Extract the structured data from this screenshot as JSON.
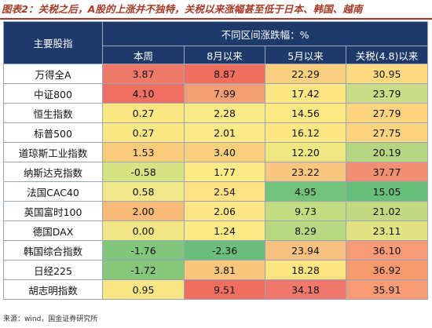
{
  "title": "图表2：关税之后，A股的上涨并不独特，关税以来涨幅甚至低于日本、韩国、越南",
  "header": {
    "row_label": "主要股指",
    "group_label": "不同区间涨跌幅：%",
    "columns": [
      "本周",
      "8月以来",
      "5月以来",
      "关税(4.8)以来"
    ]
  },
  "rows": [
    {
      "name": "万得全A",
      "values": [
        "3.87",
        "8.87",
        "22.29",
        "30.95"
      ]
    },
    {
      "name": "中证800",
      "values": [
        "4.10",
        "7.99",
        "17.42",
        "23.79"
      ]
    },
    {
      "name": "恒生指数",
      "values": [
        "0.27",
        "2.28",
        "14.56",
        "27.79"
      ]
    },
    {
      "name": "标普500",
      "values": [
        "0.27",
        "2.01",
        "16.12",
        "27.75"
      ]
    },
    {
      "name": "道琼斯工业指数",
      "values": [
        "1.53",
        "3.40",
        "12.20",
        "20.19"
      ]
    },
    {
      "name": "纳斯达克指数",
      "values": [
        "-0.58",
        "1.77",
        "23.22",
        "37.77"
      ]
    },
    {
      "name": "法国CAC40",
      "values": [
        "0.58",
        "2.54",
        "4.95",
        "15.05"
      ]
    },
    {
      "name": "英国富时100",
      "values": [
        "2.00",
        "2.06",
        "9.73",
        "21.02"
      ]
    },
    {
      "name": "德国DAX",
      "values": [
        "0.00",
        "1.24",
        "8.29",
        "23.11"
      ]
    },
    {
      "name": "韩国综合指数",
      "values": [
        "-1.76",
        "-2.36",
        "23.94",
        "36.10"
      ]
    },
    {
      "name": "日经225",
      "values": [
        "-1.72",
        "3.81",
        "18.28",
        "36.92"
      ]
    },
    {
      "name": "胡志明指数",
      "values": [
        "0.95",
        "9.51",
        "34.18",
        "35.91"
      ]
    }
  ],
  "cell_colors": [
    [
      "#ef7a6a",
      "#ef6e5e",
      "#f9cf82",
      "#fdd982"
    ],
    [
      "#ef6f63",
      "#f19f72",
      "#fde684",
      "#cadc86"
    ],
    [
      "#fbe684",
      "#f8e989",
      "#fce885",
      "#fcd480"
    ],
    [
      "#f9e884",
      "#fbe886",
      "#fde783",
      "#fcd480"
    ],
    [
      "#fccc7d",
      "#f8d07d",
      "#eee784",
      "#b6d582"
    ],
    [
      "#d7e283",
      "#fae985",
      "#f8c67f",
      "#f28f73"
    ],
    [
      "#f0e68a",
      "#fde286",
      "#74c37c",
      "#68be7b"
    ],
    [
      "#f8ba79",
      "#fce685",
      "#c3dc82",
      "#c4d881"
    ],
    [
      "#f1e686",
      "#fde986",
      "#b8d783",
      "#e1e283"
    ],
    [
      "#82c67c",
      "#6abd7a",
      "#f7c27f",
      "#f69b75"
    ],
    [
      "#87c77c",
      "#f9c67e",
      "#fde583",
      "#f6996f"
    ],
    [
      "#f8e686",
      "#ef6e5e",
      "#f0776b",
      "#f69b74"
    ]
  ],
  "source": "来源：wind，国金证券研究所"
}
